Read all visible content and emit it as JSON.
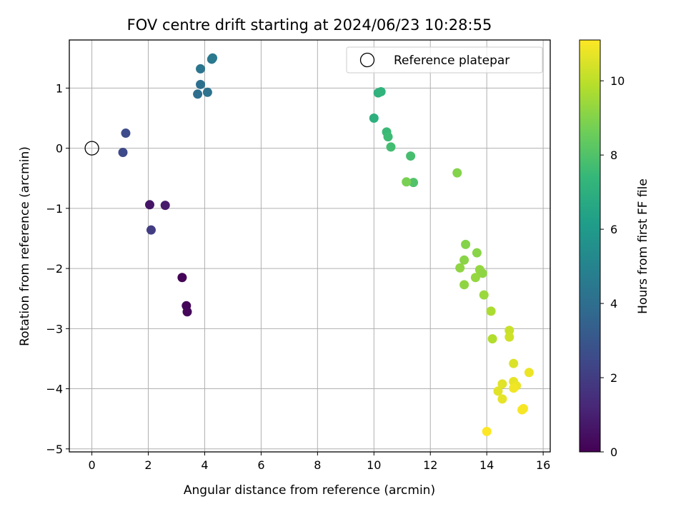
{
  "chart_data": {
    "type": "scatter",
    "title": "FOV centre drift starting at 2024/06/23 10:28:55",
    "xlabel": "Angular distance from reference (arcmin)",
    "ylabel": "Rotation from reference (arcmin)",
    "xlim": [
      -0.8,
      16.25
    ],
    "ylim": [
      -5.05,
      1.8
    ],
    "x_ticks": [
      0,
      2,
      4,
      6,
      8,
      10,
      12,
      14,
      16
    ],
    "y_ticks": [
      1,
      0,
      -1,
      -2,
      -3,
      -4,
      -5
    ],
    "grid": true,
    "legend": {
      "placement": "top-right",
      "entries": [
        "Reference platepar"
      ]
    },
    "reference_point": {
      "x": 0,
      "y": 0
    },
    "colorbar": {
      "label": "Hours from first FF file",
      "range": [
        0,
        11.1
      ],
      "ticks": [
        0,
        2,
        4,
        6,
        8,
        10
      ],
      "colormap": [
        "#440154",
        "#482878",
        "#3e4989",
        "#31688e",
        "#26828e",
        "#1f9e89",
        "#35b779",
        "#6ece58",
        "#b5de2b",
        "#fde725"
      ]
    },
    "points": [
      {
        "x": 3.2,
        "y": -2.15,
        "c": 0.1
      },
      {
        "x": 3.35,
        "y": -2.62,
        "c": 0.15
      },
      {
        "x": 3.38,
        "y": -2.72,
        "c": 0.2
      },
      {
        "x": 2.05,
        "y": -0.94,
        "c": 0.6
      },
      {
        "x": 2.6,
        "y": -0.95,
        "c": 0.8
      },
      {
        "x": 2.1,
        "y": -1.36,
        "c": 2.0
      },
      {
        "x": 1.1,
        "y": -0.07,
        "c": 2.5
      },
      {
        "x": 1.2,
        "y": 0.25,
        "c": 2.6
      },
      {
        "x": 3.75,
        "y": 0.9,
        "c": 4.0
      },
      {
        "x": 3.85,
        "y": 1.06,
        "c": 4.1
      },
      {
        "x": 4.1,
        "y": 0.93,
        "c": 4.2
      },
      {
        "x": 3.85,
        "y": 1.32,
        "c": 4.3
      },
      {
        "x": 4.25,
        "y": 1.48,
        "c": 4.4
      },
      {
        "x": 4.28,
        "y": 1.5,
        "c": 4.5
      },
      {
        "x": 10.0,
        "y": 0.5,
        "c": 7.0
      },
      {
        "x": 10.15,
        "y": 0.92,
        "c": 7.1
      },
      {
        "x": 10.25,
        "y": 0.94,
        "c": 7.2
      },
      {
        "x": 10.45,
        "y": 0.27,
        "c": 7.5
      },
      {
        "x": 10.5,
        "y": 0.19,
        "c": 7.6
      },
      {
        "x": 10.6,
        "y": 0.02,
        "c": 7.7
      },
      {
        "x": 11.3,
        "y": -0.13,
        "c": 7.8
      },
      {
        "x": 11.4,
        "y": -0.57,
        "c": 8.0
      },
      {
        "x": 11.15,
        "y": -0.56,
        "c": 8.8
      },
      {
        "x": 12.95,
        "y": -0.41,
        "c": 9.0
      },
      {
        "x": 13.25,
        "y": -1.6,
        "c": 9.0
      },
      {
        "x": 13.65,
        "y": -1.74,
        "c": 9.1
      },
      {
        "x": 13.2,
        "y": -1.86,
        "c": 9.1
      },
      {
        "x": 13.05,
        "y": -1.99,
        "c": 9.2
      },
      {
        "x": 13.75,
        "y": -2.02,
        "c": 9.3
      },
      {
        "x": 13.85,
        "y": -2.08,
        "c": 9.2
      },
      {
        "x": 13.6,
        "y": -2.15,
        "c": 9.3
      },
      {
        "x": 13.2,
        "y": -2.27,
        "c": 9.2
      },
      {
        "x": 13.9,
        "y": -2.44,
        "c": 9.4
      },
      {
        "x": 14.15,
        "y": -2.71,
        "c": 9.7
      },
      {
        "x": 14.2,
        "y": -3.17,
        "c": 9.8
      },
      {
        "x": 14.8,
        "y": -3.03,
        "c": 10.2
      },
      {
        "x": 14.8,
        "y": -3.14,
        "c": 10.3
      },
      {
        "x": 14.95,
        "y": -3.58,
        "c": 10.5
      },
      {
        "x": 15.5,
        "y": -3.73,
        "c": 10.8
      },
      {
        "x": 14.55,
        "y": -3.92,
        "c": 10.6
      },
      {
        "x": 14.95,
        "y": -3.88,
        "c": 10.7
      },
      {
        "x": 15.05,
        "y": -3.95,
        "c": 10.8
      },
      {
        "x": 14.95,
        "y": -3.99,
        "c": 10.9
      },
      {
        "x": 14.4,
        "y": -4.04,
        "c": 10.6
      },
      {
        "x": 14.55,
        "y": -4.17,
        "c": 10.7
      },
      {
        "x": 15.3,
        "y": -4.33,
        "c": 11.0
      },
      {
        "x": 15.25,
        "y": -4.35,
        "c": 11.0
      },
      {
        "x": 14.0,
        "y": -4.71,
        "c": 11.1
      }
    ]
  }
}
